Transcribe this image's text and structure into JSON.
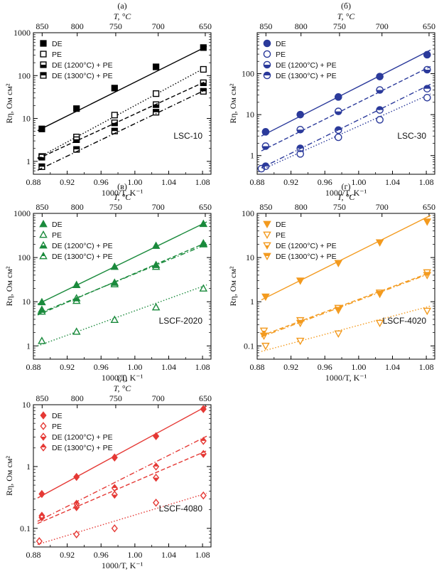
{
  "figure": {
    "x_axis_label": "1000/T, K⁻¹",
    "top_axis_label": "T, °C",
    "y_axis_label": "Rη, Ом см²",
    "x_ticks": [
      "0.88",
      "0.92",
      "0.96",
      "1.00",
      "1.04",
      "1.08"
    ],
    "top_ticks": [
      "850",
      "800",
      "750",
      "700",
      "650"
    ]
  },
  "chart_data": [
    {
      "type": "scatter",
      "panel": "(а)",
      "sample": "LSC-10",
      "color": "#000000",
      "y_scale": "log",
      "xlim": [
        0.88,
        1.09
      ],
      "ylim": [
        0.5,
        1000
      ],
      "y_ticks": [
        "1",
        "10",
        "100",
        "1000"
      ],
      "legend_position": "top-left",
      "series": [
        {
          "name": "DE",
          "marker": "filled-square",
          "line": "solid",
          "x": [
            0.89,
            0.931,
            0.976,
            1.025,
            1.081
          ],
          "y": [
            5.7,
            17,
            51,
            160,
            450
          ],
          "fit_y": [
            5.2,
            480
          ]
        },
        {
          "name": "PE",
          "marker": "open-square",
          "line": "dotted",
          "x": [
            0.89,
            0.931,
            0.976,
            1.025,
            1.081
          ],
          "y": [
            1.3,
            3.7,
            12,
            38,
            140
          ],
          "fit_y": [
            1.2,
            160
          ]
        },
        {
          "name": "DE (1200°C) + PE",
          "marker": "half-square",
          "line": "dashed",
          "x": [
            0.89,
            0.931,
            0.976,
            1.025,
            1.081
          ],
          "y": [
            1.25,
            3.2,
            7.9,
            21,
            68
          ],
          "fit_y": [
            1.15,
            75
          ]
        },
        {
          "name": "DE (1300°C) + PE",
          "marker": "half-square-dark",
          "line": "dashdot",
          "x": [
            0.89,
            0.931,
            0.976,
            1.025,
            1.081
          ],
          "y": [
            0.75,
            1.9,
            5.1,
            14,
            43
          ],
          "fit_y": [
            0.62,
            48
          ]
        }
      ]
    },
    {
      "type": "scatter",
      "panel": "(б)",
      "sample": "LSC-30",
      "color": "#2b3a9b",
      "y_scale": "log",
      "xlim": [
        0.88,
        1.09
      ],
      "ylim": [
        0.35,
        1000
      ],
      "y_ticks": [
        "1",
        "10",
        "100"
      ],
      "legend_position": "top-left",
      "series": [
        {
          "name": "DE",
          "marker": "filled-circle",
          "line": "solid",
          "x": [
            0.89,
            0.931,
            0.976,
            1.025,
            1.081
          ],
          "y": [
            3.8,
            10,
            27,
            85,
            290
          ],
          "fit_y": [
            3.0,
            380
          ]
        },
        {
          "name": "PE",
          "marker": "open-circle",
          "line": "dotted",
          "x": [
            0.885,
            0.931,
            0.976,
            1.025,
            1.081
          ],
          "y": [
            0.48,
            1.1,
            2.8,
            7.5,
            26
          ],
          "fit_y": [
            0.45,
            32
          ]
        },
        {
          "name": "DE (1200°C) + PE",
          "marker": "half-circle",
          "line": "dashed",
          "x": [
            0.89,
            0.931,
            0.976,
            1.025,
            1.081
          ],
          "y": [
            1.7,
            4.3,
            12,
            40,
            125
          ],
          "fit_y": [
            1.3,
            150
          ]
        },
        {
          "name": "DE (1300°C) + PE",
          "marker": "half-circle-dark",
          "line": "dashdot",
          "x": [
            0.89,
            0.931,
            0.976,
            1.025,
            1.081
          ],
          "y": [
            0.55,
            1.5,
            4.2,
            13,
            43
          ],
          "fit_y": [
            0.5,
            55
          ]
        }
      ]
    },
    {
      "type": "scatter",
      "panel": "(в)",
      "sample": "LSCF-2020",
      "color": "#1a8a3c",
      "y_scale": "log",
      "xlim": [
        0.88,
        1.09
      ],
      "ylim": [
        0.5,
        1000
      ],
      "y_ticks": [
        "1",
        "10",
        "100",
        "1000"
      ],
      "legend_position": "top-left",
      "series": [
        {
          "name": "DE",
          "marker": "filled-triangle",
          "line": "solid",
          "x": [
            0.89,
            0.931,
            0.976,
            1.025,
            1.081
          ],
          "y": [
            9.8,
            24,
            62,
            185,
            580
          ],
          "fit_y": [
            8.8,
            640
          ]
        },
        {
          "name": "PE",
          "marker": "open-triangle",
          "line": "dotted",
          "x": [
            0.89,
            0.931,
            0.976,
            1.025,
            1.081
          ],
          "y": [
            1.3,
            2.1,
            3.9,
            7.5,
            20
          ],
          "fit_y": [
            1.0,
            24
          ]
        },
        {
          "name": "DE (1200°C) + PE",
          "marker": "half-triangle",
          "line": "dashed",
          "x": [
            0.89,
            0.931,
            0.976,
            1.025,
            1.081
          ],
          "y": [
            6.6,
            12,
            27,
            68,
            210
          ],
          "fit_y": [
            5.0,
            220
          ]
        },
        {
          "name": "DE (1300°C) + PE",
          "marker": "half-triangle-dark",
          "line": "dashdot",
          "x": [
            0.89,
            0.931,
            0.976,
            1.025,
            1.081
          ],
          "y": [
            6.0,
            10.5,
            25,
            62,
            200
          ],
          "fit_y": [
            5.3,
            200
          ]
        }
      ]
    },
    {
      "type": "scatter",
      "panel": "(г)",
      "sample": "LSCF-4020",
      "color": "#f39a1e",
      "y_scale": "log",
      "xlim": [
        0.88,
        1.09
      ],
      "ylim": [
        0.05,
        100
      ],
      "y_ticks": [
        "0.1",
        "1",
        "10",
        "100"
      ],
      "legend_position": "top-left",
      "series": [
        {
          "name": "DE",
          "marker": "filled-down-triangle",
          "line": "solid",
          "x": [
            0.89,
            0.931,
            0.976,
            1.025,
            1.081
          ],
          "y": [
            1.3,
            3.0,
            7.5,
            22,
            65
          ],
          "fit_y": [
            1.1,
            90
          ]
        },
        {
          "name": "PE",
          "marker": "open-down-triangle",
          "line": "dotted",
          "x": [
            0.89,
            0.931,
            0.976,
            1.025,
            1.081
          ],
          "y": [
            0.1,
            0.13,
            0.19,
            0.33,
            0.62
          ],
          "fit_y": [
            0.075,
            0.8
          ]
        },
        {
          "name": "DE (1200°C) + PE",
          "marker": "half-down-triangle",
          "line": "dashed",
          "x": [
            0.888,
            0.931,
            0.976,
            1.025,
            1.081
          ],
          "y": [
            0.22,
            0.38,
            0.72,
            1.6,
            4.6
          ],
          "fit_y": [
            0.17,
            4.6
          ]
        },
        {
          "name": "DE (1300°C) + PE",
          "marker": "half-down-triangle-dark",
          "line": "dashdot",
          "x": [
            0.888,
            0.931,
            0.976,
            1.025,
            1.081
          ],
          "y": [
            0.17,
            0.33,
            0.65,
            1.5,
            4.0
          ],
          "fit_y": [
            0.16,
            4.4
          ]
        }
      ]
    },
    {
      "type": "scatter",
      "panel": "(д)",
      "sample": "LSCF-4080",
      "color": "#e53935",
      "y_scale": "log",
      "xlim": [
        0.88,
        1.09
      ],
      "ylim": [
        0.05,
        10
      ],
      "y_ticks": [
        "0.1",
        "1",
        "10"
      ],
      "legend_position": "top-left",
      "series": [
        {
          "name": "DE",
          "marker": "filled-diamond",
          "line": "solid",
          "x": [
            0.89,
            0.931,
            0.976,
            1.025,
            1.081
          ],
          "y": [
            0.36,
            0.68,
            1.4,
            3.1,
            8.5
          ],
          "fit_y": [
            0.31,
            9.5
          ]
        },
        {
          "name": "PE",
          "marker": "open-diamond",
          "line": "dotted",
          "x": [
            0.887,
            0.931,
            0.976,
            1.025,
            1.081
          ],
          "y": [
            0.062,
            0.08,
            0.1,
            0.26,
            0.34
          ],
          "fit_y": [
            0.055,
            0.37
          ]
        },
        {
          "name": "DE (1200°C) + PE",
          "marker": "half-diamond",
          "line": "dashed",
          "x": [
            0.89,
            0.931,
            0.976,
            1.025,
            1.081
          ],
          "y": [
            0.15,
            0.22,
            0.35,
            0.66,
            1.6
          ],
          "fit_y": [
            0.12,
            1.8
          ]
        },
        {
          "name": "DE (1300°C) + PE",
          "marker": "half-diamond-dark",
          "line": "dashdot",
          "x": [
            0.89,
            0.931,
            0.976,
            1.025,
            1.081
          ],
          "y": [
            0.16,
            0.25,
            0.45,
            1.0,
            2.6
          ],
          "fit_y": [
            0.13,
            3.1
          ]
        }
      ]
    }
  ]
}
